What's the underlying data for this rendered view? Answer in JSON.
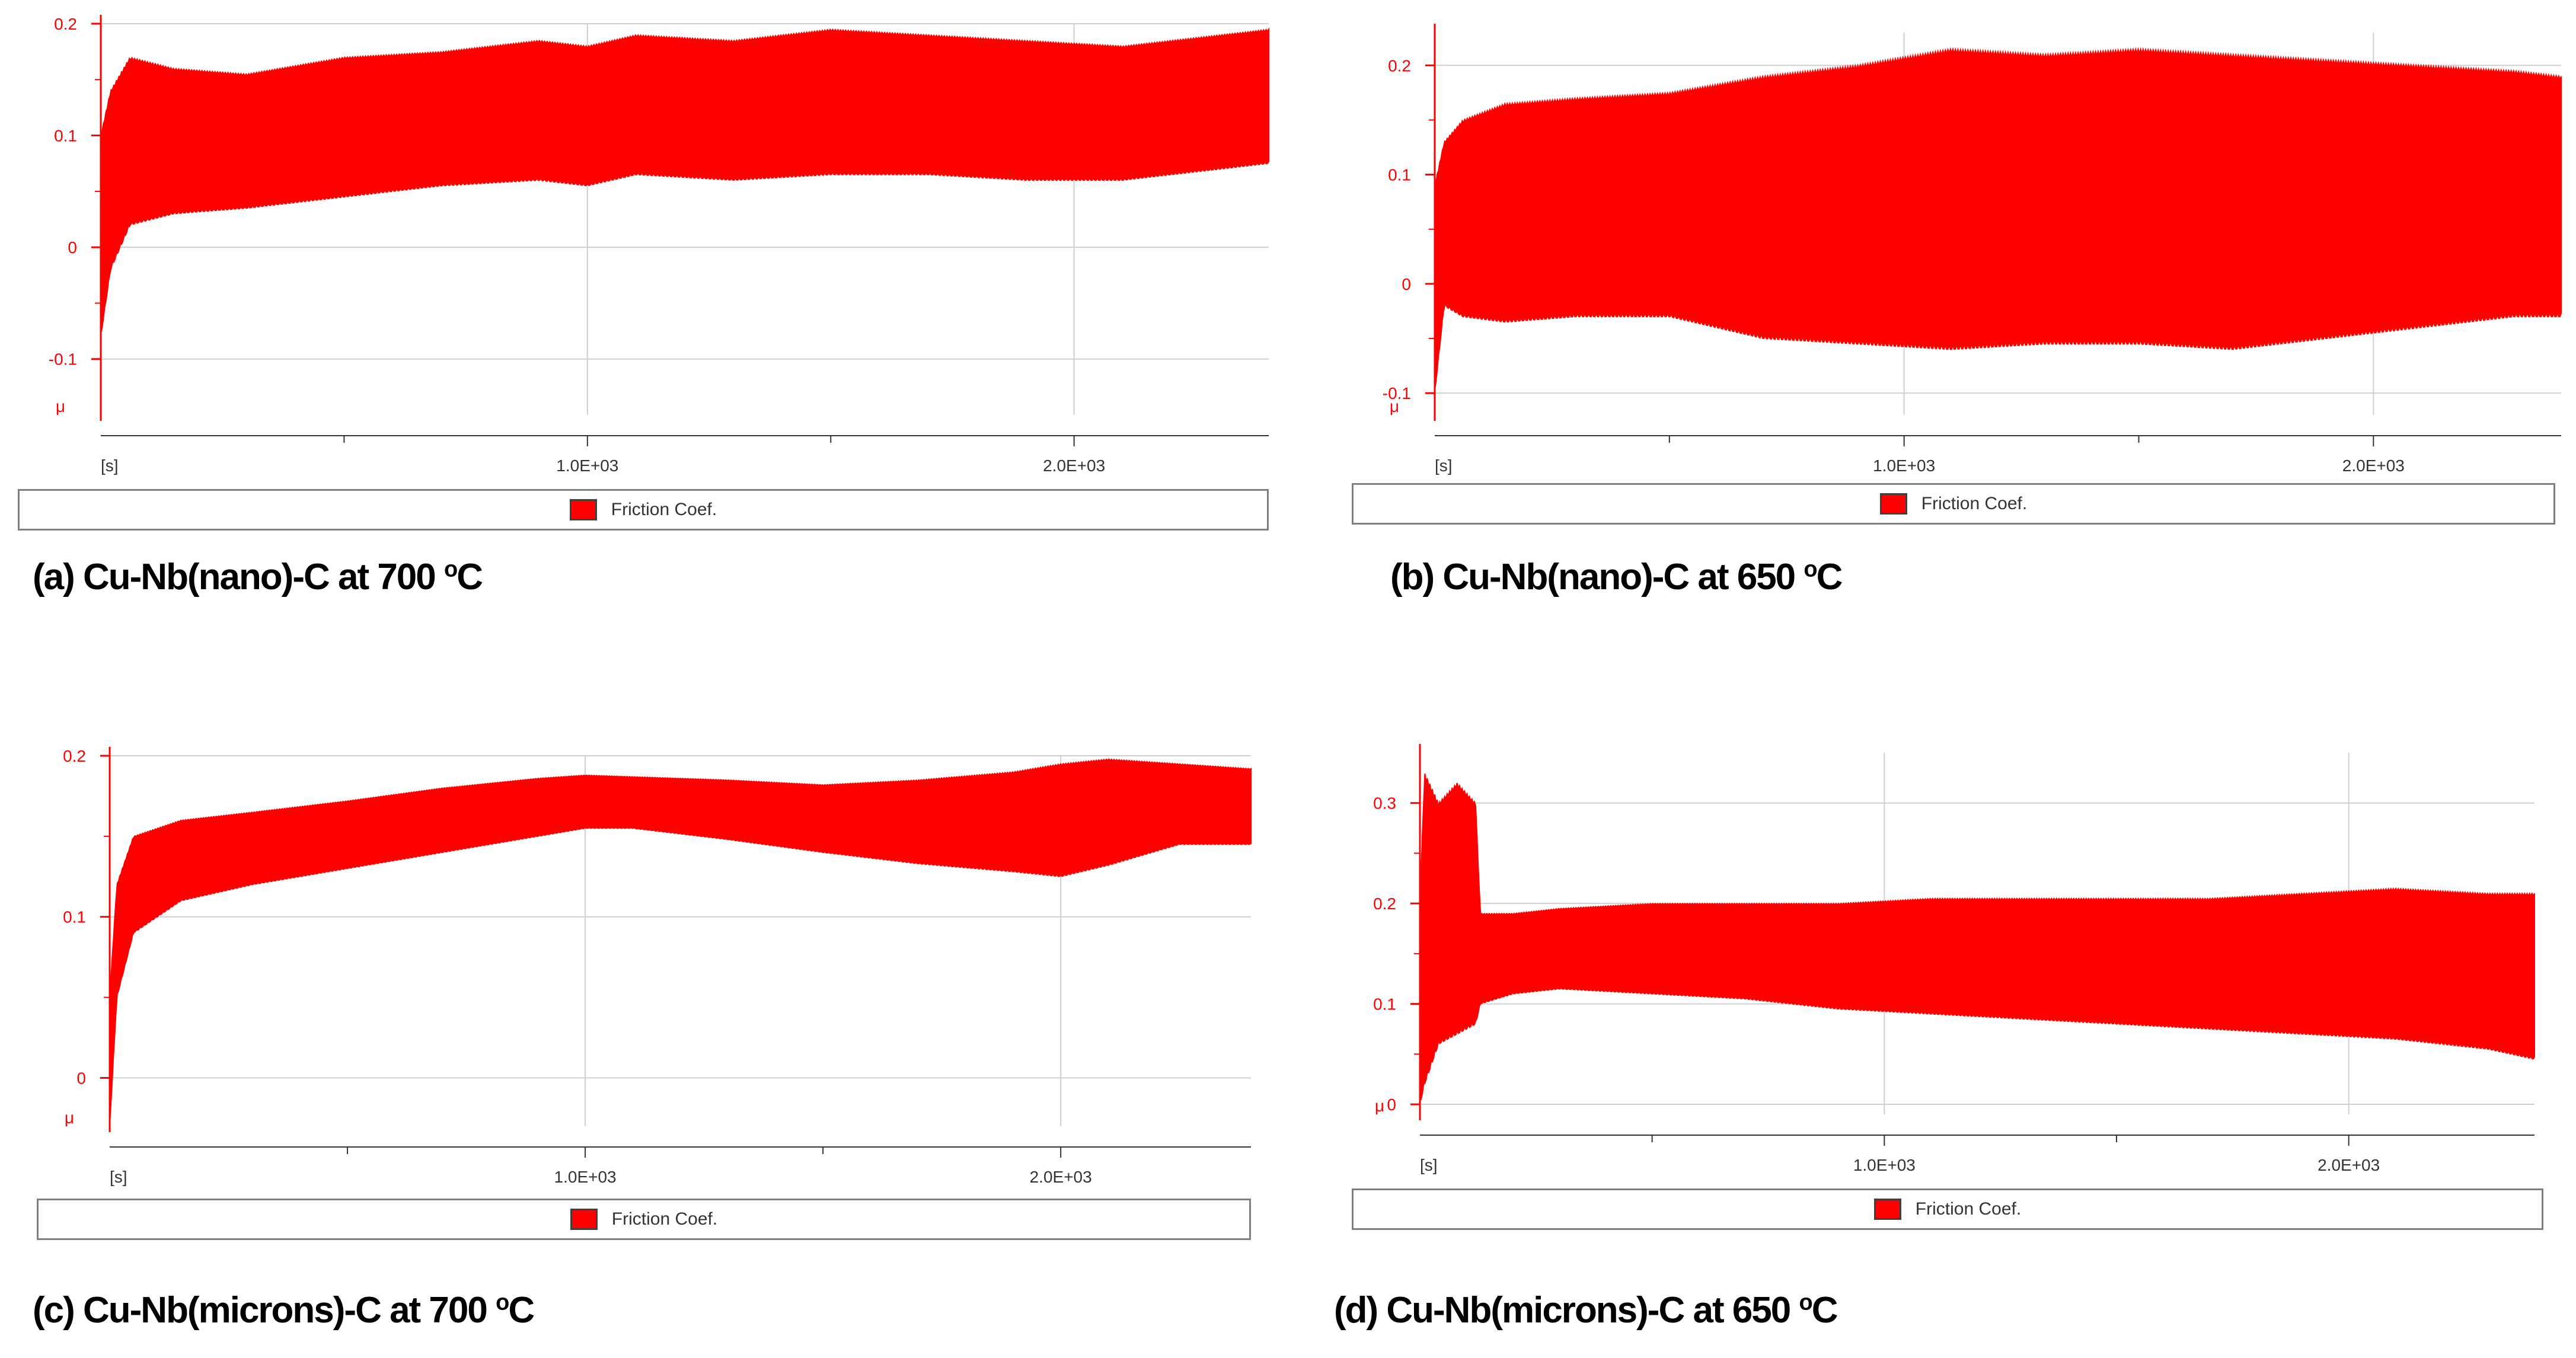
{
  "legend_label": "Friction Coef.",
  "series_color": "#ff0000",
  "chart_data": [
    {
      "id": "a",
      "type": "area",
      "caption_prefix": "(a) Cu-Nb(nano)-C at 700 ",
      "caption_sup": "o",
      "caption_suffix": "C",
      "xlabel": "[s]",
      "ylabel": "μ",
      "xlim": [
        0,
        2400
      ],
      "ylim": [
        -0.15,
        0.2
      ],
      "yticks": [
        {
          "v": 0.2,
          "label": "0.2"
        },
        {
          "v": 0.1,
          "label": "0.1"
        },
        {
          "v": 0,
          "label": "0"
        },
        {
          "v": -0.1,
          "label": "-0.1"
        }
      ],
      "xticks": [
        {
          "v": 1000,
          "label": "1.0E+03"
        },
        {
          "v": 2000,
          "label": "2.0E+03"
        }
      ],
      "series": [
        {
          "name": "Friction Coef.",
          "x": [
            0,
            20,
            60,
            150,
            300,
            500,
            700,
            900,
            1000,
            1100,
            1300,
            1500,
            1700,
            1900,
            2100,
            2300,
            2400
          ],
          "upper": [
            0.1,
            0.14,
            0.17,
            0.16,
            0.155,
            0.17,
            0.175,
            0.185,
            0.18,
            0.19,
            0.185,
            0.195,
            0.19,
            0.185,
            0.18,
            0.19,
            0.195
          ],
          "lower": [
            -0.08,
            -0.02,
            0.02,
            0.03,
            0.035,
            0.045,
            0.055,
            0.06,
            0.055,
            0.065,
            0.06,
            0.065,
            0.065,
            0.06,
            0.06,
            0.07,
            0.075
          ]
        }
      ]
    },
    {
      "id": "b",
      "type": "area",
      "caption_prefix": "(b) Cu-Nb(nano)-C at 650 ",
      "caption_sup": "o",
      "caption_suffix": "C",
      "xlabel": "[s]",
      "ylabel": "μ",
      "xlim": [
        0,
        2400
      ],
      "ylim": [
        -0.12,
        0.23
      ],
      "yticks": [
        {
          "v": 0.2,
          "label": "0.2"
        },
        {
          "v": 0.1,
          "label": "0.1"
        },
        {
          "v": 0,
          "label": "0"
        },
        {
          "v": -0.1,
          "label": "-0.1"
        }
      ],
      "xticks": [
        {
          "v": 1000,
          "label": "1.0E+03"
        },
        {
          "v": 2000,
          "label": "2.0E+03"
        }
      ],
      "series": [
        {
          "name": "Friction Coef.",
          "x": [
            0,
            20,
            60,
            150,
            300,
            500,
            700,
            900,
            1100,
            1300,
            1500,
            1700,
            1900,
            2100,
            2300,
            2400
          ],
          "upper": [
            0.09,
            0.13,
            0.15,
            0.165,
            0.17,
            0.175,
            0.19,
            0.2,
            0.215,
            0.21,
            0.215,
            0.21,
            0.205,
            0.2,
            0.195,
            0.19
          ],
          "lower": [
            -0.1,
            -0.02,
            -0.03,
            -0.035,
            -0.03,
            -0.03,
            -0.05,
            -0.055,
            -0.06,
            -0.055,
            -0.055,
            -0.06,
            -0.05,
            -0.04,
            -0.03,
            -0.03
          ]
        }
      ]
    },
    {
      "id": "c",
      "type": "area",
      "caption_prefix": "(c) Cu-Nb(microns)-C at 700 ",
      "caption_sup": "o",
      "caption_suffix": "C",
      "xlabel": "[s]",
      "ylabel": "μ",
      "xlim": [
        0,
        2400
      ],
      "ylim": [
        -0.03,
        0.2
      ],
      "yticks": [
        {
          "v": 0.2,
          "label": "0.2"
        },
        {
          "v": 0.1,
          "label": "0.1"
        },
        {
          "v": 0,
          "label": "0"
        }
      ],
      "xticks": [
        {
          "v": 1000,
          "label": "1.0E+03"
        },
        {
          "v": 2000,
          "label": "2.0E+03"
        }
      ],
      "series": [
        {
          "name": "Friction Coef.",
          "x": [
            0,
            15,
            50,
            150,
            300,
            500,
            700,
            900,
            1000,
            1100,
            1300,
            1500,
            1700,
            1900,
            2000,
            2100,
            2250,
            2400
          ],
          "upper": [
            0.05,
            0.12,
            0.15,
            0.16,
            0.165,
            0.172,
            0.18,
            0.186,
            0.188,
            0.187,
            0.185,
            0.182,
            0.185,
            0.19,
            0.195,
            0.198,
            0.195,
            0.192
          ],
          "lower": [
            -0.03,
            0.05,
            0.09,
            0.11,
            0.12,
            0.13,
            0.14,
            0.15,
            0.155,
            0.155,
            0.148,
            0.14,
            0.133,
            0.128,
            0.125,
            0.132,
            0.145,
            0.145
          ]
        }
      ]
    },
    {
      "id": "d",
      "type": "area",
      "caption_prefix": "(d) Cu-Nb(microns)-C at 650 ",
      "caption_sup": "o",
      "caption_suffix": "C",
      "xlabel": "[s]",
      "ylabel": "μ",
      "xlim": [
        0,
        2400
      ],
      "ylim": [
        -0.01,
        0.35
      ],
      "yticks": [
        {
          "v": 0.3,
          "label": "0.3"
        },
        {
          "v": 0.2,
          "label": "0.2"
        },
        {
          "v": 0.1,
          "label": "0.1"
        },
        {
          "v": 0,
          "label": "0"
        }
      ],
      "xticks": [
        {
          "v": 1000,
          "label": "1.0E+03"
        },
        {
          "v": 2000,
          "label": "2.0E+03"
        }
      ],
      "series": [
        {
          "name": "Friction Coef.",
          "x": [
            0,
            10,
            40,
            80,
            120,
            130,
            200,
            300,
            500,
            700,
            900,
            1100,
            1300,
            1500,
            1700,
            1900,
            2100,
            2300,
            2400
          ],
          "upper": [
            0.2,
            0.33,
            0.3,
            0.32,
            0.3,
            0.19,
            0.19,
            0.195,
            0.2,
            0.2,
            0.2,
            0.205,
            0.205,
            0.205,
            0.205,
            0.21,
            0.215,
            0.21,
            0.21
          ],
          "lower": [
            0.0,
            0.02,
            0.06,
            0.07,
            0.08,
            0.1,
            0.11,
            0.115,
            0.11,
            0.105,
            0.095,
            0.09,
            0.085,
            0.08,
            0.075,
            0.07,
            0.065,
            0.055,
            0.045
          ]
        }
      ]
    }
  ]
}
